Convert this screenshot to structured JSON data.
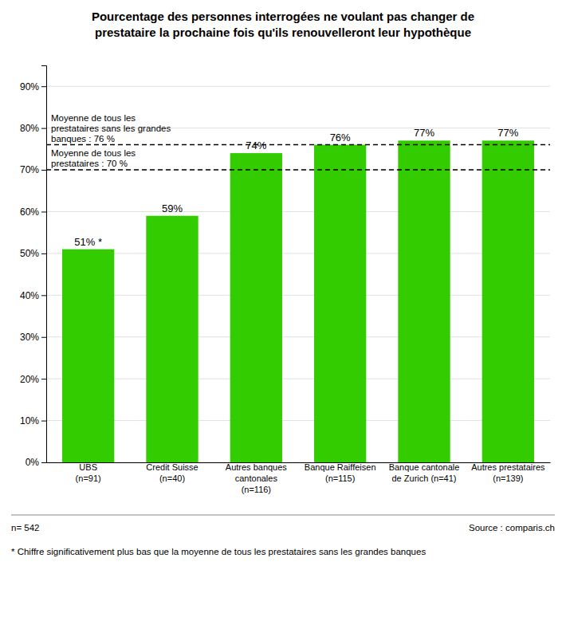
{
  "chart_data": {
    "type": "bar",
    "title": "Pourcentage des personnes interrogées ne voulant pas changer de\nprestataire la prochaine fois qu'ils renouvelleront leur hypothèque",
    "categories": [
      "UBS\n(n=91)",
      "Credit Suisse\n(n=40)",
      "Autres banques\ncantonales\n(n=116)",
      "Banque Raiffeisen\n(n=115)",
      "Banque cantonale\nde Zurich (n=41)",
      "Autres prestataires\n(n=139)"
    ],
    "values": [
      0.51,
      0.59,
      0.74,
      0.76,
      0.77,
      0.77
    ],
    "value_labels": [
      "51% *",
      "59%",
      "74%",
      "76%",
      "77%",
      "77%"
    ],
    "data_labels": true,
    "color": "#33cc00",
    "ylim": [
      0,
      0.95
    ],
    "yticks": [
      {
        "value": 0.0,
        "label": "0%"
      },
      {
        "value": 0.1,
        "label": "10%"
      },
      {
        "value": 0.2,
        "label": "20%"
      },
      {
        "value": 0.3,
        "label": "30%"
      },
      {
        "value": 0.4,
        "label": "40%"
      },
      {
        "value": 0.5,
        "label": "50%"
      },
      {
        "value": 0.6,
        "label": "60%"
      },
      {
        "value": 0.7,
        "label": "70%"
      },
      {
        "value": 0.8,
        "label": "80%"
      },
      {
        "value": 0.9,
        "label": "90%"
      }
    ],
    "grid": true,
    "annotations": [
      {
        "y": 0.76,
        "text": "Moyenne de tous les\nprestataires sans les grandes\nbanques  : 76 %"
      },
      {
        "y": 0.7,
        "text": "Moyenne de tous les\nprestataires : 70 %"
      }
    ],
    "notes": [
      "n= 542",
      "Source : comparis.ch",
      "* Chiffre significativement plus bas que la moyenne de tous les prestataires sans les grandes banques"
    ]
  }
}
